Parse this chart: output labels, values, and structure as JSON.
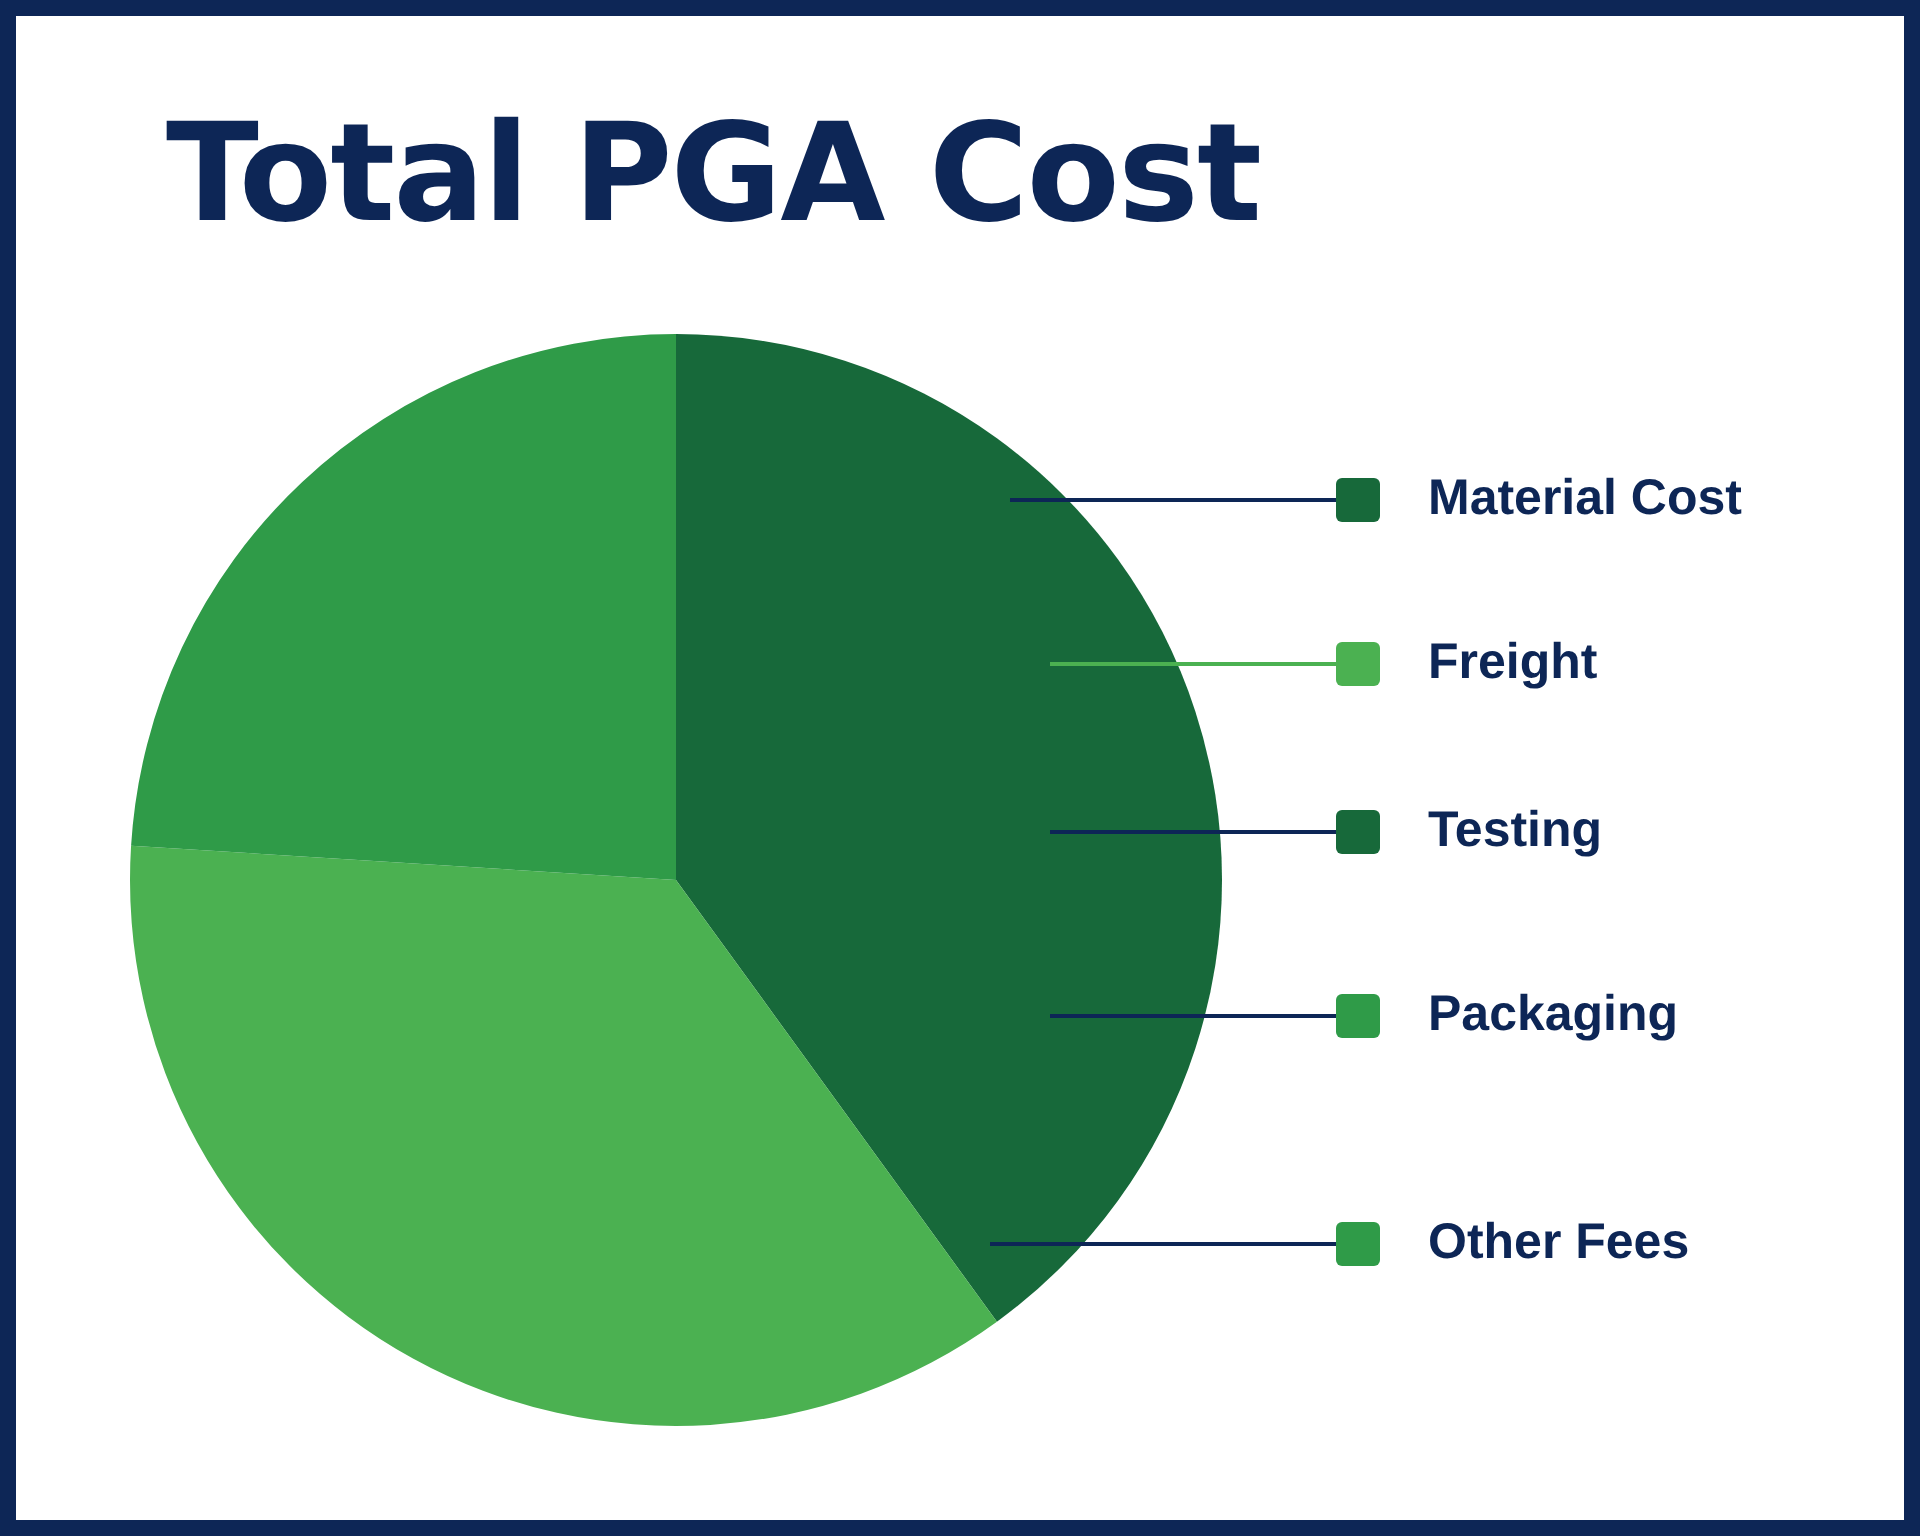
{
  "chart_data": {
    "type": "pie",
    "title": "Total PGA Cost",
    "categories": [
      "Material Cost",
      "Freight",
      "Testing",
      "Packaging",
      "Other Fees"
    ],
    "values": [
      40,
      36,
      0,
      24,
      0
    ],
    "colors": [
      "#17693a",
      "#4bb151",
      "#17693a",
      "#2f9b48",
      "#2f9b48"
    ],
    "legend": "right"
  }
}
